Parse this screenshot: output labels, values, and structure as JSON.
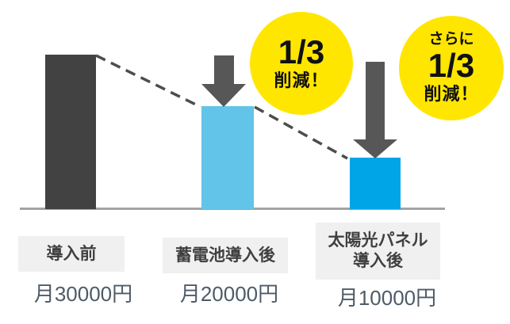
{
  "chart_data": {
    "type": "bar",
    "title": "",
    "xlabel": "",
    "ylabel": "",
    "categories": [
      "導入前",
      "蓄電池導入後",
      "太陽光パネル導入後"
    ],
    "values": [
      30000,
      20000,
      10000
    ],
    "value_labels": [
      "月30000円",
      "月20000円",
      "月10000円"
    ],
    "ylim": [
      0,
      30000
    ],
    "bar_colors": [
      "#424242",
      "#62c4e8",
      "#00a5e8"
    ],
    "grid": false,
    "legend": false,
    "annotations": [
      {
        "text": "1/3 削減！",
        "target": "蓄電池導入後"
      },
      {
        "text": "さらに 1/3 削減！",
        "target": "太陽光パネル導入後"
      }
    ]
  },
  "badges": [
    {
      "fraction": "1/3",
      "suffix": "削減！"
    },
    {
      "prefix": "さらに",
      "fraction": "1/3",
      "suffix": "削減！"
    }
  ],
  "category_boxes": [
    {
      "line1": "導入前"
    },
    {
      "line1": "蓄電池導入後"
    },
    {
      "line1": "太陽光パネル",
      "line2": "導入後"
    }
  ],
  "colors": {
    "bar_before": "#424242",
    "bar_after_battery": "#62c4e8",
    "bar_after_solar": "#00a5e8",
    "badge_background": "#ffe600",
    "badge_text": "#111111",
    "arrow": "#575757",
    "dashed_line": "#4d4d4d",
    "baseline": "#a3a3a3",
    "category_box_background": "#f0f0f0",
    "category_text": "#404040",
    "price_text": "#4e5b68"
  }
}
